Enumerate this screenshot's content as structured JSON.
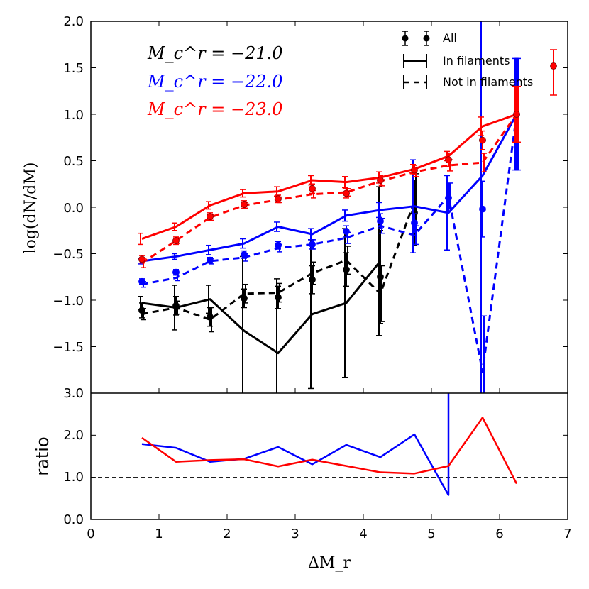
{
  "chart_data": [
    {
      "type": "line",
      "panel": "top",
      "ylabel": "log(dN/dM)",
      "ylim": [
        -2.0,
        2.0
      ],
      "xlim": [
        0,
        7
      ],
      "yticks": [
        "2.0",
        "1.5",
        "1.0",
        "0.5",
        "0.0",
        "−0.5",
        "−1.0",
        "−1.5"
      ],
      "x": [
        0.75,
        1.25,
        1.75,
        2.25,
        2.75,
        3.25,
        3.75,
        4.25,
        4.75,
        5.25,
        5.75,
        6.25
      ],
      "annotations": [
        {
          "text": "M_c^r = −21.0",
          "color": "#000000"
        },
        {
          "text": "M_c^r = −22.0",
          "color": "#0000ff"
        },
        {
          "text": "M_c^r = −23.0",
          "color": "#ff0000"
        }
      ],
      "legend": {
        "placement": "top-right",
        "entries": [
          "All",
          "In filaments",
          "Not in filaments"
        ]
      },
      "series": [
        {
          "group": "−21.0",
          "kind": "in-filaments",
          "color": "#000000",
          "values": [
            -1.03,
            -1.08,
            -0.99,
            -1.33,
            -1.57,
            -1.15,
            -1.03,
            -0.58,
            null,
            null,
            null,
            null
          ],
          "err": [
            0.07,
            0.24,
            0.15,
            0.8,
            0.8,
            0.8,
            0.8,
            0.8,
            null,
            null,
            null,
            null
          ]
        },
        {
          "group": "−21.0",
          "kind": "not-in-filaments",
          "color": "#000000",
          "values": [
            -1.15,
            -1.08,
            -1.21,
            -0.93,
            -0.92,
            -0.71,
            -0.57,
            -0.93,
            0.06,
            null,
            null,
            null
          ],
          "err": [
            0.06,
            0.07,
            0.13,
            0.1,
            0.1,
            0.12,
            0.15,
            0.3,
            0.3,
            null,
            null,
            null
          ]
        },
        {
          "group": "−21.0",
          "kind": "all",
          "color": "#000000",
          "values": [
            -1.11,
            -1.06,
            -1.18,
            -0.98,
            -0.97,
            -0.78,
            -0.67,
            -0.75,
            -0.06,
            null,
            null,
            null
          ],
          "err": [
            0.08,
            0.1,
            0.1,
            0.1,
            0.12,
            0.15,
            0.18,
            0.5,
            0.35,
            null,
            null,
            null
          ]
        },
        {
          "group": "−22.0",
          "kind": "in-filaments",
          "color": "#0000ff",
          "values": [
            -0.58,
            -0.53,
            -0.46,
            -0.39,
            -0.21,
            -0.29,
            -0.09,
            -0.03,
            0.01,
            -0.06,
            0.34,
            1.0
          ],
          "err": [
            0.03,
            0.03,
            0.05,
            0.05,
            0.05,
            0.06,
            0.06,
            0.08,
            0.5,
            0.4,
            2.5,
            0.6
          ]
        },
        {
          "group": "−22.0",
          "kind": "not-in-filaments",
          "color": "#0000ff",
          "values": [
            -0.83,
            -0.76,
            -0.58,
            -0.54,
            -0.44,
            -0.4,
            -0.33,
            -0.2,
            -0.3,
            0.12,
            -1.77,
            1.0
          ],
          "err": [
            0.03,
            0.03,
            0.03,
            0.04,
            0.04,
            0.05,
            0.06,
            0.08,
            0.1,
            0.14,
            0.6,
            0.6
          ]
        },
        {
          "group": "−22.0",
          "kind": "all",
          "color": "#0000ff",
          "values": [
            -0.8,
            -0.7,
            -0.57,
            -0.51,
            -0.41,
            -0.4,
            -0.26,
            -0.15,
            -0.17,
            0.1,
            -0.02,
            1.0
          ],
          "err": [
            0.03,
            0.03,
            0.03,
            0.04,
            0.04,
            0.05,
            0.06,
            0.08,
            0.1,
            0.15,
            0.3,
            0.6
          ]
        },
        {
          "group": "−23.0",
          "kind": "in-filaments",
          "color": "#ff0000",
          "values": [
            -0.34,
            -0.21,
            0.02,
            0.15,
            0.17,
            0.29,
            0.27,
            0.32,
            0.41,
            0.55,
            0.87,
            1.0
          ],
          "err": [
            0.06,
            0.04,
            0.04,
            0.04,
            0.05,
            0.05,
            0.06,
            0.06,
            0.05,
            0.05,
            0.1,
            0.3
          ]
        },
        {
          "group": "−23.0",
          "kind": "not-in-filaments",
          "color": "#ff0000",
          "values": [
            -0.6,
            -0.36,
            -0.11,
            0.02,
            0.08,
            0.14,
            0.16,
            0.28,
            0.38,
            0.45,
            0.48,
            1.0
          ],
          "err": [
            0.05,
            0.03,
            0.03,
            0.03,
            0.03,
            0.04,
            0.04,
            0.05,
            0.05,
            0.06,
            0.1,
            0.3
          ]
        },
        {
          "group": "−23.0",
          "kind": "all",
          "color": "#ff0000",
          "values": [
            -0.56,
            -0.36,
            -0.1,
            0.03,
            0.09,
            0.2,
            0.15,
            0.29,
            0.4,
            0.51,
            0.72,
            1.0
          ],
          "err": [
            0.04,
            0.04,
            0.04,
            0.04,
            0.04,
            0.05,
            0.05,
            0.05,
            0.05,
            0.07,
            0.1,
            0.3
          ]
        }
      ]
    },
    {
      "type": "line",
      "panel": "bottom",
      "ylabel": "ratio",
      "xlabel": "ΔM_r",
      "ylim": [
        0.0,
        3.0
      ],
      "xlim": [
        0,
        7
      ],
      "yticks": [
        "0.0",
        "1.0",
        "2.0",
        "3.0"
      ],
      "xticks": [
        "0",
        "1",
        "2",
        "3",
        "4",
        "5",
        "6",
        "7"
      ],
      "reference_line": 1.0,
      "x": [
        0.75,
        1.25,
        1.75,
        2.25,
        2.75,
        3.25,
        3.75,
        4.25,
        4.75,
        5.25,
        5.75,
        6.25
      ],
      "series": [
        {
          "color": "#0000ff",
          "x": [
            0.75,
            1.25,
            1.75,
            2.25,
            2.75,
            3.25,
            3.75,
            4.25,
            4.75,
            5.25,
            5.25
          ],
          "values": [
            1.79,
            1.7,
            1.37,
            1.44,
            1.72,
            1.31,
            1.77,
            1.48,
            2.02,
            0.58,
            3.0
          ]
        },
        {
          "color": "#ff0000",
          "x": [
            0.75,
            1.25,
            1.75,
            2.25,
            2.75,
            3.25,
            3.75,
            4.25,
            4.75,
            5.25,
            5.75,
            6.25
          ],
          "values": [
            1.94,
            1.37,
            1.41,
            1.43,
            1.26,
            1.42,
            1.27,
            1.12,
            1.09,
            1.27,
            2.42,
            0.85
          ]
        }
      ]
    }
  ]
}
